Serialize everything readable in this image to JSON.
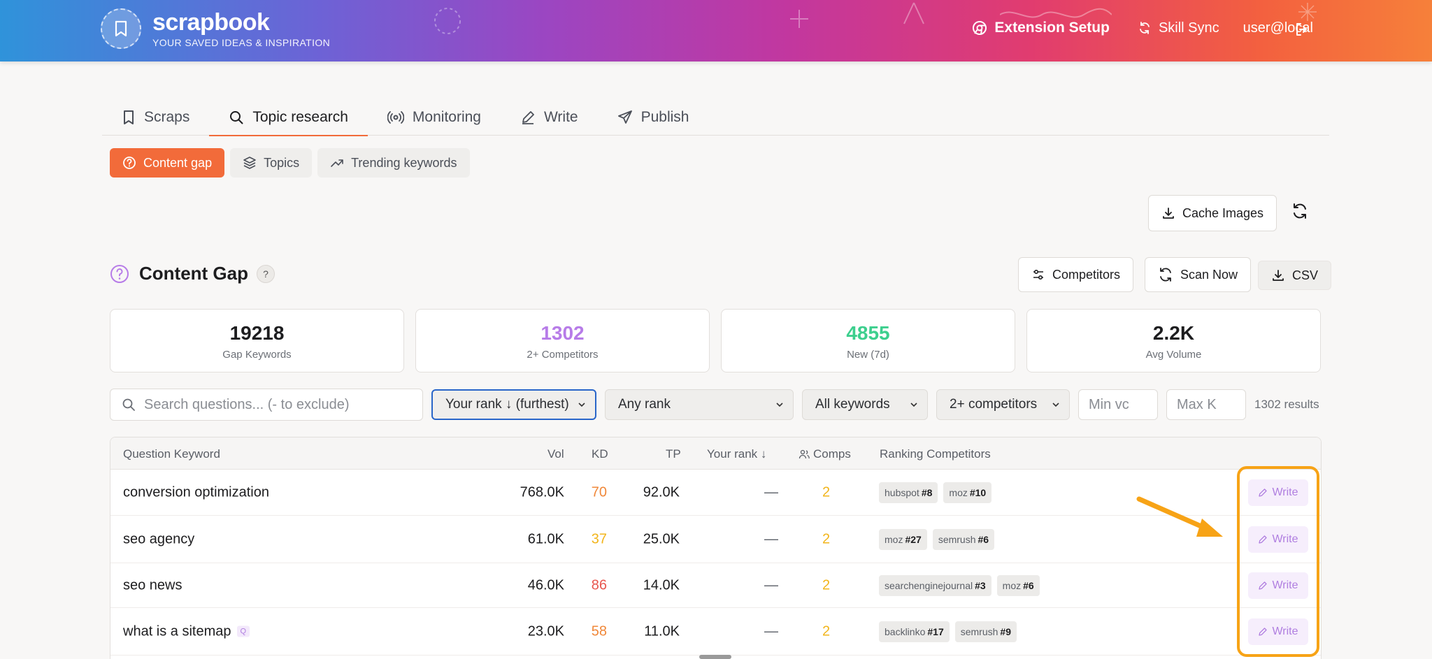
{
  "app": {
    "name": "scrapbook",
    "tagline": "YOUR SAVED IDEAS & INSPIRATION",
    "extension_setup": "Extension Setup",
    "skill_sync": "Skill Sync",
    "user": "user@local"
  },
  "tabs": [
    {
      "label": "Scraps",
      "icon": "bookmark-icon"
    },
    {
      "label": "Topic research",
      "icon": "search-icon",
      "active": true
    },
    {
      "label": "Monitoring",
      "icon": "broadcast-icon"
    },
    {
      "label": "Write",
      "icon": "pencil-icon"
    },
    {
      "label": "Publish",
      "icon": "send-icon"
    }
  ],
  "subtabs": [
    {
      "label": "Content gap",
      "icon": "help-circle-icon",
      "active": true
    },
    {
      "label": "Topics",
      "icon": "layers-icon"
    },
    {
      "label": "Trending keywords",
      "icon": "trending-up-icon"
    }
  ],
  "toolbar": {
    "cache_images": "Cache Images"
  },
  "section": {
    "title": "Content Gap",
    "help": "?",
    "competitors_btn": "Competitors",
    "scan_btn": "Scan Now",
    "csv_btn": "CSV"
  },
  "stats": [
    {
      "value": "19218",
      "label": "Gap Keywords",
      "color": "#1d1d1f"
    },
    {
      "value": "1302",
      "label": "2+ Competitors",
      "color": "#b77ce8"
    },
    {
      "value": "4855",
      "label": "New (7d)",
      "color": "#3dcf8e"
    },
    {
      "value": "2.2K",
      "label": "Avg Volume",
      "color": "#1d1d1f"
    }
  ],
  "filters": {
    "search_placeholder": "Search questions... (- to exclude)",
    "sort": "Your rank ↓ (furthest)",
    "rank": "Any rank",
    "keywords": "All keywords",
    "competitors": "2+ competitors",
    "min_placeholder": "Min vc",
    "max_placeholder": "Max K",
    "results": "1302 results"
  },
  "table": {
    "headers": {
      "keyword": "Question Keyword",
      "vol": "Vol",
      "kd": "KD",
      "tp": "TP",
      "rank": "Your rank ↓",
      "comps": "Comps",
      "ranking": "Ranking Competitors"
    },
    "write_label": "Write",
    "rows": [
      {
        "keyword": "conversion optimization",
        "badge": "",
        "vol": "768.0K",
        "kd": "70",
        "kd_color": "#f0883a",
        "tp": "92.0K",
        "rank": "—",
        "comps": "2",
        "competitors": [
          {
            "name": "hubspot",
            "rank": "#8"
          },
          {
            "name": "moz",
            "rank": "#10"
          }
        ]
      },
      {
        "keyword": "seo agency",
        "badge": "",
        "vol": "61.0K",
        "kd": "37",
        "kd_color": "#f2b51c",
        "tp": "25.0K",
        "rank": "—",
        "comps": "2",
        "competitors": [
          {
            "name": "moz",
            "rank": "#27"
          },
          {
            "name": "semrush",
            "rank": "#6"
          }
        ]
      },
      {
        "keyword": "seo news",
        "badge": "",
        "vol": "46.0K",
        "kd": "86",
        "kd_color": "#e8574f",
        "tp": "14.0K",
        "rank": "—",
        "comps": "2",
        "competitors": [
          {
            "name": "searchenginejournal",
            "rank": "#3"
          },
          {
            "name": "moz",
            "rank": "#6"
          }
        ]
      },
      {
        "keyword": "what is a sitemap",
        "badge": "Q",
        "vol": "23.0K",
        "kd": "58",
        "kd_color": "#f0883a",
        "tp": "11.0K",
        "rank": "—",
        "comps": "2",
        "competitors": [
          {
            "name": "backlinko",
            "rank": "#17"
          },
          {
            "name": "semrush",
            "rank": "#9"
          }
        ]
      }
    ]
  },
  "colors": {
    "accent": "#f26b3a",
    "purple": "#b77ce8",
    "comps": "#f2b51c",
    "highlight": "#f7a316"
  }
}
